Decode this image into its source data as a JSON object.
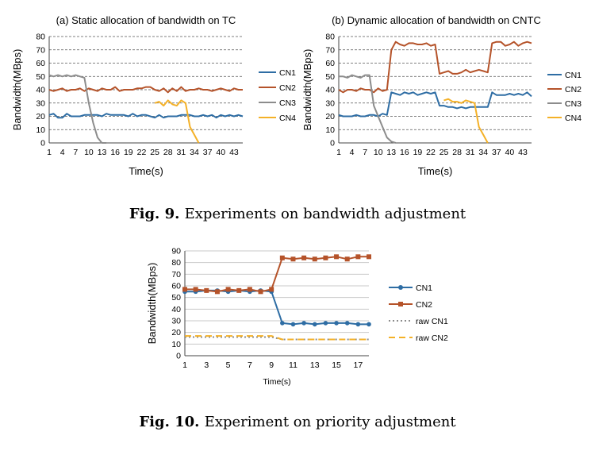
{
  "captions": [
    {
      "label": "Fig. 9.",
      "text": "Experiments on bandwidth adjustment"
    },
    {
      "label": "Fig. 10.",
      "text": "Experiment on priority adjustment"
    }
  ],
  "chart_data": [
    {
      "type": "line",
      "title": "(a) Static allocation of bandwidth on TC",
      "xlabel": "Time(s)",
      "ylabel": "Bandwidth(MBps)",
      "ylim": [
        0,
        80
      ],
      "yticks": [
        0,
        10,
        20,
        30,
        40,
        50,
        60,
        70,
        80
      ],
      "xlim": [
        1,
        45
      ],
      "xticks": [
        1,
        4,
        7,
        10,
        13,
        16,
        19,
        22,
        25,
        28,
        31,
        34,
        37,
        40,
        43
      ],
      "grid": "horizontal-dashed",
      "legend": "right",
      "colors": {
        "CN1": "#2e6da4",
        "CN2": "#b5532a",
        "CN3": "#8c8c8c",
        "CN4": "#f4b128"
      },
      "series": [
        {
          "name": "CN1",
          "x": [
            1,
            2,
            3,
            4,
            5,
            6,
            7,
            8,
            9,
            10,
            11,
            12,
            13,
            14,
            15,
            16,
            17,
            18,
            19,
            20,
            21,
            22,
            23,
            24,
            25,
            26,
            27,
            28,
            29,
            30,
            31,
            32,
            33,
            34,
            35,
            36,
            37,
            38,
            39,
            40,
            41,
            42,
            43,
            44,
            45
          ],
          "y": [
            21,
            22,
            19,
            19,
            22,
            20,
            20,
            20,
            21,
            21,
            21,
            21,
            20,
            22,
            21,
            21,
            21,
            21,
            20,
            22,
            20,
            21,
            21,
            20,
            19,
            21,
            19,
            20,
            20,
            20,
            21,
            21,
            21,
            20,
            20,
            21,
            20,
            21,
            19,
            21,
            20,
            21,
            20,
            21,
            20
          ]
        },
        {
          "name": "CN2",
          "x": [
            1,
            2,
            3,
            4,
            5,
            6,
            7,
            8,
            9,
            10,
            11,
            12,
            13,
            14,
            15,
            16,
            17,
            18,
            19,
            20,
            21,
            22,
            23,
            24,
            25,
            26,
            27,
            28,
            29,
            30,
            31,
            32,
            33,
            34,
            35,
            36,
            37,
            38,
            39,
            40,
            41,
            42,
            43,
            44,
            45
          ],
          "y": [
            40,
            39,
            40,
            41,
            39,
            40,
            40,
            41,
            39,
            41,
            40,
            39,
            41,
            40,
            40,
            42,
            39,
            40,
            40,
            40,
            41,
            41,
            42,
            42,
            40,
            39,
            41,
            38,
            41,
            39,
            42,
            39,
            40,
            40,
            41,
            40,
            40,
            39,
            40,
            41,
            40,
            39,
            41,
            40,
            40
          ]
        },
        {
          "name": "CN3",
          "x": [
            1,
            2,
            3,
            4,
            5,
            6,
            7,
            8,
            9,
            10,
            11,
            12,
            13,
            14
          ],
          "y": [
            51,
            50,
            51,
            50,
            51,
            50,
            51,
            50,
            49,
            30,
            15,
            4,
            0,
            0
          ]
        },
        {
          "name": "CN4",
          "x": [
            25,
            26,
            27,
            28,
            29,
            30,
            31,
            32,
            33,
            34,
            35
          ],
          "y": [
            30,
            31,
            28,
            32,
            29,
            28,
            32,
            30,
            12,
            6,
            0
          ]
        }
      ]
    },
    {
      "type": "line",
      "title": "(b) Dynamic allocation of bandwidth on CNTC",
      "xlabel": "Time(s)",
      "ylabel": "Bandwidth(MBps)",
      "ylim": [
        0,
        80
      ],
      "yticks": [
        0,
        10,
        20,
        30,
        40,
        50,
        60,
        70,
        80
      ],
      "xlim": [
        1,
        45
      ],
      "xticks": [
        1,
        4,
        7,
        10,
        13,
        16,
        19,
        22,
        25,
        28,
        31,
        34,
        37,
        40,
        43
      ],
      "grid": "horizontal-dashed",
      "legend": "right",
      "colors": {
        "CN1": "#2e6da4",
        "CN2": "#b5532a",
        "CN3": "#8c8c8c",
        "CN4": "#f4b128"
      },
      "series": [
        {
          "name": "CN1",
          "x": [
            1,
            2,
            3,
            4,
            5,
            6,
            7,
            8,
            9,
            10,
            11,
            12,
            13,
            14,
            15,
            16,
            17,
            18,
            19,
            20,
            21,
            22,
            23,
            24,
            25,
            26,
            27,
            28,
            29,
            30,
            31,
            32,
            33,
            34,
            35,
            36,
            37,
            38,
            39,
            40,
            41,
            42,
            43,
            44,
            45
          ],
          "y": [
            21,
            20,
            20,
            20,
            21,
            20,
            20,
            21,
            21,
            20,
            22,
            21,
            38,
            37,
            36,
            38,
            37,
            38,
            36,
            37,
            38,
            37,
            38,
            28,
            28,
            27,
            27,
            26,
            27,
            26,
            27,
            27,
            27,
            27,
            27,
            38,
            36,
            36,
            36,
            37,
            36,
            37,
            36,
            38,
            35
          ]
        },
        {
          "name": "CN2",
          "x": [
            1,
            2,
            3,
            4,
            5,
            6,
            7,
            8,
            9,
            10,
            11,
            12,
            13,
            14,
            15,
            16,
            17,
            18,
            19,
            20,
            21,
            22,
            23,
            24,
            25,
            26,
            27,
            28,
            29,
            30,
            31,
            32,
            33,
            34,
            35,
            36,
            37,
            38,
            39,
            40,
            41,
            42,
            43,
            44,
            45
          ],
          "y": [
            40,
            38,
            40,
            40,
            39,
            41,
            40,
            40,
            38,
            41,
            39,
            40,
            70,
            76,
            74,
            73,
            75,
            75,
            74,
            74,
            75,
            73,
            74,
            52,
            53,
            54,
            52,
            52,
            53,
            55,
            53,
            54,
            55,
            54,
            53,
            75,
            76,
            76,
            73,
            74,
            76,
            73,
            75,
            76,
            75
          ]
        },
        {
          "name": "CN3",
          "x": [
            1,
            2,
            3,
            4,
            5,
            6,
            7,
            8,
            9,
            10,
            11,
            12,
            13,
            14
          ],
          "y": [
            50,
            50,
            49,
            51,
            50,
            49,
            51,
            51,
            28,
            20,
            12,
            4,
            1,
            0
          ]
        },
        {
          "name": "CN4",
          "x": [
            25,
            26,
            27,
            28,
            29,
            30,
            31,
            32,
            33,
            34,
            35
          ],
          "y": [
            32,
            33,
            31,
            31,
            30,
            32,
            31,
            30,
            12,
            6,
            0
          ]
        }
      ]
    },
    {
      "type": "line",
      "title": "",
      "xlabel": "Time(s)",
      "ylabel": "Bandwidth(MBps)",
      "ylim": [
        0,
        90
      ],
      "yticks": [
        0,
        10,
        20,
        30,
        40,
        50,
        60,
        70,
        80,
        90
      ],
      "xlim": [
        1,
        18
      ],
      "xticks": [
        1,
        3,
        5,
        7,
        9,
        11,
        13,
        15,
        17
      ],
      "grid": "horizontal-solid",
      "legend": "right",
      "colors": {
        "CN1": "#2e6da4",
        "CN2": "#b5532a",
        "raw CN1": "#8c8c8c",
        "raw CN2": "#f4b128"
      },
      "series": [
        {
          "name": "CN1",
          "marker": "circle",
          "x": [
            1,
            2,
            3,
            4,
            5,
            6,
            7,
            8,
            9,
            10,
            11,
            12,
            13,
            14,
            15,
            16,
            17,
            18
          ],
          "y": [
            55,
            55,
            56,
            56,
            55,
            56,
            55,
            56,
            55,
            28,
            27,
            28,
            27,
            28,
            28,
            28,
            27,
            27
          ]
        },
        {
          "name": "CN2",
          "marker": "square",
          "x": [
            1,
            2,
            3,
            4,
            5,
            6,
            7,
            8,
            9,
            10,
            11,
            12,
            13,
            14,
            15,
            16,
            17,
            18
          ],
          "y": [
            57,
            57,
            56,
            55,
            57,
            56,
            57,
            55,
            57,
            84,
            83,
            84,
            83,
            84,
            85,
            83,
            85,
            85
          ]
        },
        {
          "name": "raw CN1",
          "dash": "dotted",
          "x": [
            1,
            2,
            3,
            4,
            5,
            6,
            7,
            8,
            9,
            10,
            11,
            12,
            13,
            14,
            15,
            16,
            17,
            18
          ],
          "y": [
            16,
            16,
            16,
            16,
            16,
            16,
            16,
            16,
            16,
            14,
            14,
            14,
            14,
            14,
            14,
            14,
            14,
            14
          ]
        },
        {
          "name": "raw CN2",
          "dash": "dashed",
          "x": [
            1,
            2,
            3,
            4,
            5,
            6,
            7,
            8,
            9,
            10,
            11,
            12,
            13,
            14,
            15,
            16,
            17,
            18
          ],
          "y": [
            17,
            17,
            17,
            17,
            17,
            17,
            17,
            17,
            17,
            14,
            14,
            14,
            14,
            14,
            14,
            14,
            14,
            14
          ]
        }
      ]
    }
  ]
}
